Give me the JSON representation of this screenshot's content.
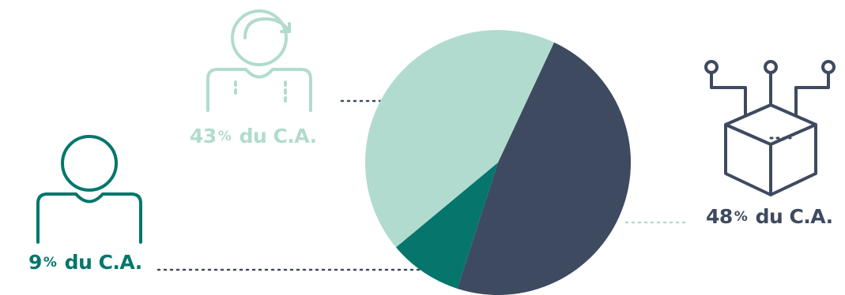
{
  "chart_data": {
    "type": "pie",
    "slices": [
      {
        "key": "clients",
        "value": 48,
        "color": "#3e4a60",
        "label_number": "48",
        "label_symbol": "%",
        "label_text": "du C.A."
      },
      {
        "key": "individual",
        "value": 9,
        "color": "#06766c",
        "label_number": "9",
        "label_symbol": "%",
        "label_text": "du C.A."
      },
      {
        "key": "user",
        "value": 43,
        "color": "#b2dbcf",
        "label_number": "43",
        "label_symbol": "%",
        "label_text": "du C.A."
      }
    ]
  },
  "icons": {
    "left": "user-icon",
    "top": "user-refresh-icon",
    "right": "connected-box-icon"
  },
  "colors": {
    "dark": "#3e4a60",
    "teal": "#06766c",
    "mint": "#b2dbcf"
  }
}
